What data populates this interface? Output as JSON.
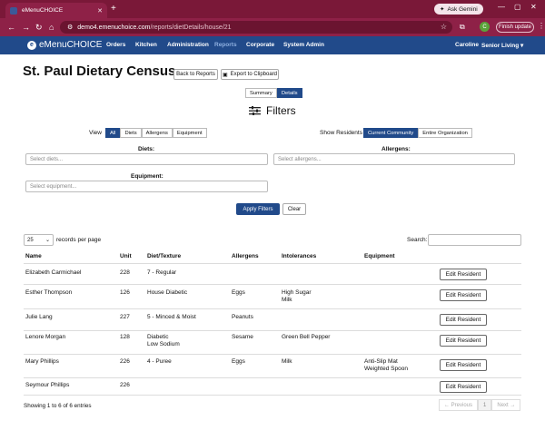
{
  "browser": {
    "tab_title": "eMenuCHOICE",
    "url_host": "demo4.emenuchoice.com",
    "url_path": "/reports/dietDetails/house/21",
    "gemini_label": "Ask Gemini",
    "avatar_letter": "C",
    "finish_update": "Finish update"
  },
  "nav": {
    "brand": "eMenuCHOICE",
    "items": [
      "Orders",
      "Kitchen",
      "Administration",
      "Reports",
      "Corporate",
      "System Admin"
    ],
    "user": "Caroline",
    "org": "Senior Living"
  },
  "page": {
    "title": "St. Paul Dietary Census",
    "back_button": "Back to Reports",
    "export_button": "Export to Clipboard",
    "view_modes": [
      "Summary",
      "Details"
    ],
    "filters_title": "Filters"
  },
  "filters": {
    "view_label": "View",
    "view_options": [
      "All",
      "Diets",
      "Allergens",
      "Equipment"
    ],
    "show_residents_label": "Show Residents",
    "show_options": [
      "Current Community",
      "Entire Organization"
    ],
    "diets_label": "Diets:",
    "diets_placeholder": "Select diets...",
    "allergens_label": "Allergens:",
    "allergens_placeholder": "Select allergens...",
    "equipment_label": "Equipment:",
    "equipment_placeholder": "Select equipment...",
    "apply": "Apply Filters",
    "clear": "Clear"
  },
  "table": {
    "page_size": "25",
    "records_label": "records per page",
    "search_label": "Search:",
    "columns": [
      "Name",
      "Unit",
      "Diet/Texture",
      "Allergens",
      "Intolerances",
      "Equipment"
    ],
    "edit_label": "Edit Resident",
    "rows": [
      {
        "name": "Elizabeth Carmichael",
        "unit": "228",
        "diet": "7 - Regular",
        "diet2": "",
        "allergens": "",
        "intol": "",
        "intol2": "",
        "equip": "",
        "equip2": ""
      },
      {
        "name": "Esther Thompson",
        "unit": "126",
        "diet": "House Diabetic",
        "diet2": "",
        "allergens": "Eggs",
        "intol": "High Sugar",
        "intol2": "Milk",
        "equip": "",
        "equip2": ""
      },
      {
        "name": "Julie Lang",
        "unit": "227",
        "diet": "5 - Minced & Moist",
        "diet2": "",
        "allergens": "Peanuts",
        "intol": "",
        "intol2": "",
        "equip": "",
        "equip2": ""
      },
      {
        "name": "Lenore Morgan",
        "unit": "128",
        "diet": "Diabetic",
        "diet2": "Low Sodium",
        "allergens": "Sesame",
        "intol": "Green Bell Pepper",
        "intol2": "",
        "equip": "",
        "equip2": ""
      },
      {
        "name": "Mary Phillips",
        "unit": "226",
        "diet": "4 - Puree",
        "diet2": "",
        "allergens": "Eggs",
        "intol": "Milk",
        "intol2": "",
        "equip": "Anti-Slip Mat",
        "equip2": "Weighted Spoon"
      },
      {
        "name": "Seymour Phillips",
        "unit": "226",
        "diet": "",
        "diet2": "",
        "allergens": "",
        "intol": "",
        "intol2": "",
        "equip": "",
        "equip2": ""
      }
    ],
    "showing": "Showing 1 to 6 of 6 entries",
    "prev": "← Previous",
    "page": "1",
    "next": "Next →"
  }
}
